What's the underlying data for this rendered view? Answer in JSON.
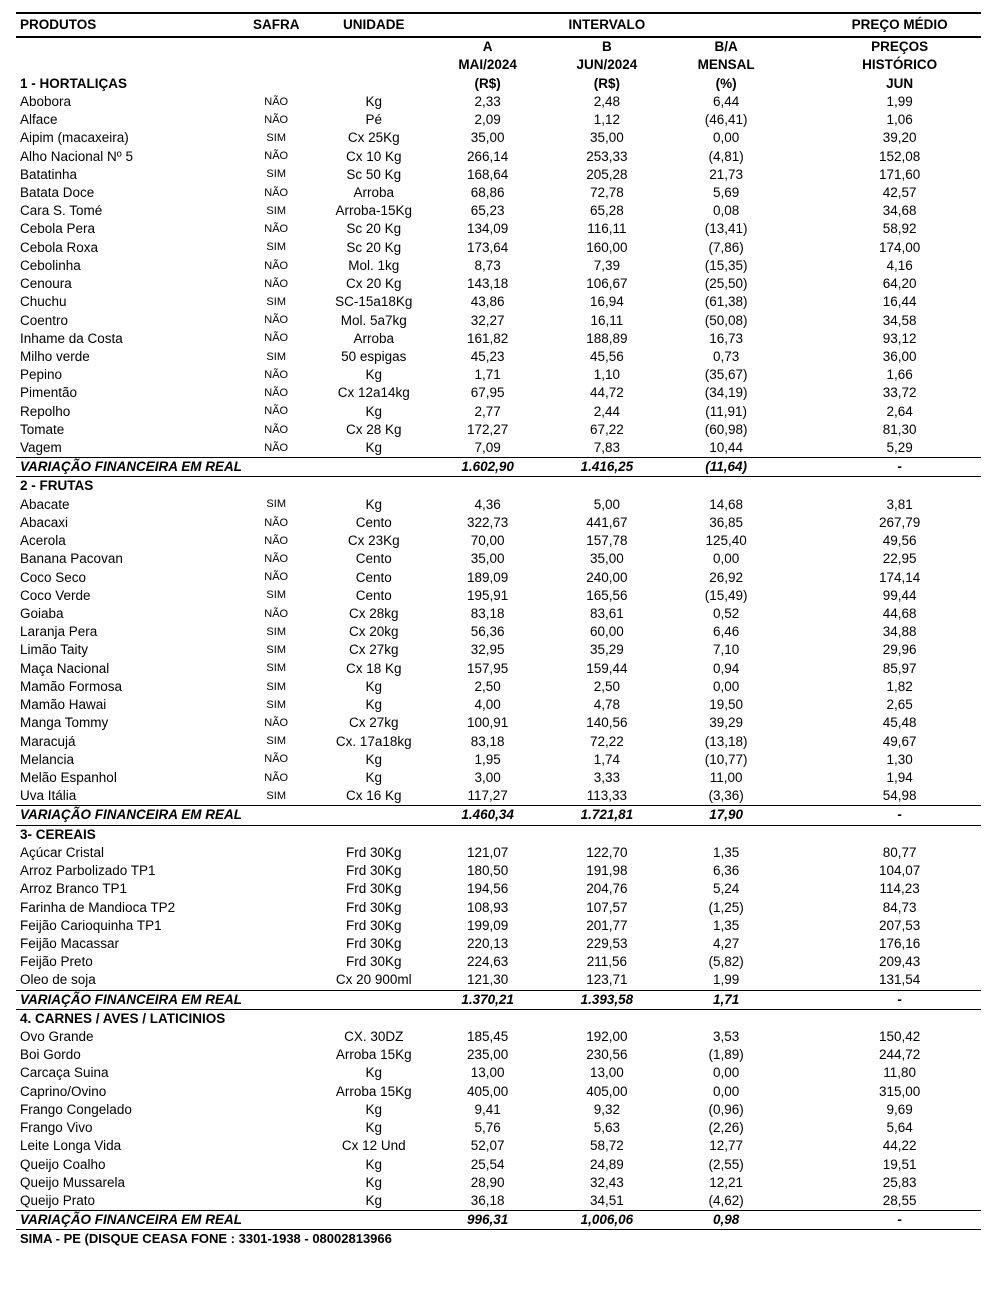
{
  "header": {
    "produtos": "PRODUTOS",
    "safra": "SAFRA",
    "unidade": "UNIDADE",
    "intervalo": "INTERVALO",
    "preco_medio": "PREÇO MÉDIO"
  },
  "subheader": {
    "a": "A",
    "a2": "MAI/2024",
    "a3": "(R$)",
    "b": "B",
    "b2": "JUN/2024",
    "b3": "(R$)",
    "ba": "B/A",
    "ba2": "MENSAL",
    "ba3": "(%)",
    "p": "PREÇOS",
    "p2": "HISTÓRICO",
    "p3": "JUN"
  },
  "vf_label": "VARIAÇÃO FINANCEIRA EM REAL",
  "footer": "SIMA - PE (DISQUE CEASA FONE : 3301-1938  - 08002813966",
  "sections": [
    {
      "title": "1 - HORTALIÇAS",
      "rows": [
        {
          "p": "Abobora",
          "s": "NÃO",
          "u": "Kg",
          "a": "2,33",
          "b": "2,48",
          "ba": "6,44",
          "h": "1,99"
        },
        {
          "p": "Alface",
          "s": "NÃO",
          "u": "Pé",
          "a": "2,09",
          "b": "1,12",
          "ba": "(46,41)",
          "h": "1,06"
        },
        {
          "p": "Aipim (macaxeira)",
          "s": "SIM",
          "u": "Cx 25Kg",
          "a": "35,00",
          "b": "35,00",
          "ba": "0,00",
          "h": "39,20"
        },
        {
          "p": "Alho Nacional Nº 5",
          "s": "NÃO",
          "u": "Cx 10 Kg",
          "a": "266,14",
          "b": "253,33",
          "ba": "(4,81)",
          "h": "152,08"
        },
        {
          "p": "Batatinha",
          "s": "SIM",
          "u": "Sc 50 Kg",
          "a": "168,64",
          "b": "205,28",
          "ba": "21,73",
          "h": "171,60"
        },
        {
          "p": "Batata Doce",
          "s": "NÃO",
          "u": "Arroba",
          "a": "68,86",
          "b": "72,78",
          "ba": "5,69",
          "h": "42,57"
        },
        {
          "p": "Cara S. Tomé",
          "s": "SIM",
          "u": "Arroba-15Kg",
          "a": "65,23",
          "b": "65,28",
          "ba": "0,08",
          "h": "34,68"
        },
        {
          "p": "Cebola Pera",
          "s": "NÃO",
          "u": "Sc 20 Kg",
          "a": "134,09",
          "b": "116,11",
          "ba": "(13,41)",
          "h": "58,92"
        },
        {
          "p": "Cebola Roxa",
          "s": "SIM",
          "u": "Sc 20 Kg",
          "a": "173,64",
          "b": "160,00",
          "ba": "(7,86)",
          "h": "174,00"
        },
        {
          "p": "Cebolinha",
          "s": "NÃO",
          "u": "Mol. 1kg",
          "a": "8,73",
          "b": "7,39",
          "ba": "(15,35)",
          "h": "4,16"
        },
        {
          "p": "Cenoura",
          "s": "NÃO",
          "u": "Cx 20 Kg",
          "a": "143,18",
          "b": "106,67",
          "ba": "(25,50)",
          "h": "64,20"
        },
        {
          "p": "Chuchu",
          "s": "SIM",
          "u": "SC-15a18Kg",
          "a": "43,86",
          "b": "16,94",
          "ba": "(61,38)",
          "h": "16,44"
        },
        {
          "p": "Coentro",
          "s": "NÃO",
          "u": "Mol. 5a7kg",
          "a": "32,27",
          "b": "16,11",
          "ba": "(50,08)",
          "h": "34,58"
        },
        {
          "p": "Inhame da Costa",
          "s": "NÃO",
          "u": "Arroba",
          "a": "161,82",
          "b": "188,89",
          "ba": "16,73",
          "h": "93,12"
        },
        {
          "p": "Milho verde",
          "s": "SIM",
          "u": "50 espigas",
          "a": "45,23",
          "b": "45,56",
          "ba": "0,73",
          "h": "36,00"
        },
        {
          "p": "Pepino",
          "s": "NÃO",
          "u": "Kg",
          "a": "1,71",
          "b": "1,10",
          "ba": "(35,67)",
          "h": "1,66"
        },
        {
          "p": "Pimentão",
          "s": "NÃO",
          "u": "Cx 12a14kg",
          "a": "67,95",
          "b": "44,72",
          "ba": "(34,19)",
          "h": "33,72"
        },
        {
          "p": "Repolho",
          "s": "NÃO",
          "u": "Kg",
          "a": "2,77",
          "b": "2,44",
          "ba": "(11,91)",
          "h": "2,64"
        },
        {
          "p": "Tomate",
          "s": "NÃO",
          "u": "Cx 28 Kg",
          "a": "172,27",
          "b": "67,22",
          "ba": "(60,98)",
          "h": "81,30"
        },
        {
          "p": "Vagem",
          "s": "NÃO",
          "u": "Kg",
          "a": "7,09",
          "b": "7,83",
          "ba": "10,44",
          "h": "5,29"
        }
      ],
      "vf": {
        "a": "1.602,90",
        "b": "1.416,25",
        "ba": "(11,64)",
        "h": "-"
      }
    },
    {
      "title": "2  - FRUTAS",
      "rows": [
        {
          "p": "Abacate",
          "s": "SIM",
          "u": "Kg",
          "a": "4,36",
          "b": "5,00",
          "ba": "14,68",
          "h": "3,81"
        },
        {
          "p": "Abacaxi",
          "s": "NÃO",
          "u": "Cento",
          "a": "322,73",
          "b": "441,67",
          "ba": "36,85",
          "h": "267,79"
        },
        {
          "p": "Acerola",
          "s": "NÃO",
          "u": "Cx 23Kg",
          "a": "70,00",
          "b": "157,78",
          "ba": "125,40",
          "h": "49,56"
        },
        {
          "p": "Banana Pacovan",
          "s": "NÃO",
          "u": "Cento",
          "a": "35,00",
          "b": "35,00",
          "ba": "0,00",
          "h": "22,95"
        },
        {
          "p": "Coco Seco",
          "s": "NÃO",
          "u": "Cento",
          "a": "189,09",
          "b": "240,00",
          "ba": "26,92",
          "h": "174,14"
        },
        {
          "p": "Coco Verde",
          "s": "SIM",
          "u": "Cento",
          "a": "195,91",
          "b": "165,56",
          "ba": "(15,49)",
          "h": "99,44"
        },
        {
          "p": "Goiaba",
          "s": "NÃO",
          "u": "Cx 28kg",
          "a": "83,18",
          "b": "83,61",
          "ba": "0,52",
          "h": "44,68"
        },
        {
          "p": "Laranja Pera",
          "s": "SIM",
          "u": "Cx 20kg",
          "a": "56,36",
          "b": "60,00",
          "ba": "6,46",
          "h": "34,88"
        },
        {
          "p": "Limão Taity",
          "s": "SIM",
          "u": "Cx 27kg",
          "a": "32,95",
          "b": "35,29",
          "ba": "7,10",
          "h": "29,96"
        },
        {
          "p": "Maça Nacional",
          "s": "SIM",
          "u": "Cx 18 Kg",
          "a": "157,95",
          "b": "159,44",
          "ba": "0,94",
          "h": "85,97"
        },
        {
          "p": "Mamão Formosa",
          "s": "SIM",
          "u": "Kg",
          "a": "2,50",
          "b": "2,50",
          "ba": "0,00",
          "h": "1,82"
        },
        {
          "p": "Mamão Hawai",
          "s": "SIM",
          "u": "Kg",
          "a": "4,00",
          "b": "4,78",
          "ba": "19,50",
          "h": "2,65"
        },
        {
          "p": "Manga Tommy",
          "s": "NÃO",
          "u": "Cx 27kg",
          "a": "100,91",
          "b": "140,56",
          "ba": "39,29",
          "h": "45,48"
        },
        {
          "p": "Maracujá",
          "s": "SIM",
          "u": "Cx. 17a18kg",
          "a": "83,18",
          "b": "72,22",
          "ba": "(13,18)",
          "h": "49,67"
        },
        {
          "p": "Melancia",
          "s": "NÃO",
          "u": "Kg",
          "a": "1,95",
          "b": "1,74",
          "ba": "(10,77)",
          "h": "1,30"
        },
        {
          "p": "Melão Espanhol",
          "s": "NÃO",
          "u": "Kg",
          "a": "3,00",
          "b": "3,33",
          "ba": "11,00",
          "h": "1,94"
        },
        {
          "p": "Uva Itália",
          "s": "SIM",
          "u": "Cx 16 Kg",
          "a": "117,27",
          "b": "113,33",
          "ba": "(3,36)",
          "h": "54,98"
        }
      ],
      "vf": {
        "a": "1.460,34",
        "b": "1.721,81",
        "ba": "17,90",
        "h": "-"
      }
    },
    {
      "title": "3- CEREAIS",
      "rows": [
        {
          "p": "Açúcar Cristal",
          "s": "",
          "u": "Frd 30Kg",
          "a": "121,07",
          "b": "122,70",
          "ba": "1,35",
          "h": "80,77"
        },
        {
          "p": "Arroz Parbolizado TP1",
          "s": "",
          "u": "Frd 30Kg",
          "a": "180,50",
          "b": "191,98",
          "ba": "6,36",
          "h": "104,07"
        },
        {
          "p": "Arroz Branco TP1",
          "s": "",
          "u": "Frd 30Kg",
          "a": "194,56",
          "b": "204,76",
          "ba": "5,24",
          "h": "114,23"
        },
        {
          "p": "Farinha de Mandioca TP2",
          "s": "",
          "u": "Frd 30Kg",
          "a": "108,93",
          "b": "107,57",
          "ba": "(1,25)",
          "h": "84,73"
        },
        {
          "p": "Feijão Carioquinha TP1",
          "s": "",
          "u": "Frd 30Kg",
          "a": "199,09",
          "b": "201,77",
          "ba": "1,35",
          "h": "207,53"
        },
        {
          "p": "Feijão Macassar",
          "s": "",
          "u": "Frd 30Kg",
          "a": "220,13",
          "b": "229,53",
          "ba": "4,27",
          "h": "176,16"
        },
        {
          "p": "Feijão Preto",
          "s": "",
          "u": "Frd 30Kg",
          "a": "224,63",
          "b": "211,56",
          "ba": "(5,82)",
          "h": "209,43"
        },
        {
          "p": "Oleo de soja",
          "s": "",
          "u": "Cx 20 900ml",
          "a": "121,30",
          "b": "123,71",
          "ba": "1,99",
          "h": "131,54"
        }
      ],
      "vf": {
        "a": "1.370,21",
        "b": "1.393,58",
        "ba": "1,71",
        "h": "-"
      }
    },
    {
      "title": "4. CARNES / AVES / LATICINIOS",
      "rows": [
        {
          "p": "Ovo Grande",
          "s": "",
          "u": "CX. 30DZ",
          "a": "185,45",
          "b": "192,00",
          "ba": "3,53",
          "h": "150,42"
        },
        {
          "p": "Boi Gordo",
          "s": "",
          "u": "Arroba 15Kg",
          "a": "235,00",
          "b": "230,56",
          "ba": "(1,89)",
          "h": "244,72"
        },
        {
          "p": "Carcaça Suina",
          "s": "",
          "u": "Kg",
          "a": "13,00",
          "b": "13,00",
          "ba": "0,00",
          "h": "11,80"
        },
        {
          "p": "Caprino/Ovino",
          "s": "",
          "u": "Arroba 15Kg",
          "a": "405,00",
          "b": "405,00",
          "ba": "0,00",
          "h": "315,00"
        },
        {
          "p": "Frango Congelado",
          "s": "",
          "u": "Kg",
          "a": "9,41",
          "b": "9,32",
          "ba": "(0,96)",
          "h": "9,69"
        },
        {
          "p": "Frango Vivo",
          "s": "",
          "u": "Kg",
          "a": "5,76",
          "b": "5,63",
          "ba": "(2,26)",
          "h": "5,64"
        },
        {
          "p": "Leite Longa Vida",
          "s": "",
          "u": "Cx 12 Und",
          "a": "52,07",
          "b": "58,72",
          "ba": "12,77",
          "h": "44,22"
        },
        {
          "p": "Queijo Coalho",
          "s": "",
          "u": "Kg",
          "a": "25,54",
          "b": "24,89",
          "ba": "(2,55)",
          "h": "19,51"
        },
        {
          "p": "Queijo Mussarela",
          "s": "",
          "u": "Kg",
          "a": "28,90",
          "b": "32,43",
          "ba": "12,21",
          "h": "25,83"
        },
        {
          "p": "Queijo Prato",
          "s": "",
          "u": "Kg",
          "a": "36,18",
          "b": "34,51",
          "ba": "(4,62)",
          "h": "28,55"
        }
      ],
      "vf": {
        "a": "996,31",
        "b": "1,006,06",
        "ba": "0,98",
        "h": "-"
      }
    }
  ]
}
